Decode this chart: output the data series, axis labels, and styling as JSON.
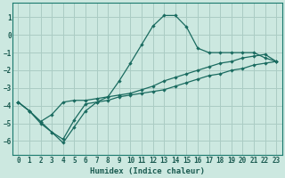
{
  "xlabel": "Humidex (Indice chaleur)",
  "ylabel": "",
  "bg_color": "#cce8e0",
  "grid_color": "#aaccC4",
  "line_color": "#1a6b60",
  "xlim": [
    -0.5,
    23.5
  ],
  "ylim": [
    -6.8,
    1.8
  ],
  "xticks": [
    0,
    1,
    2,
    3,
    4,
    5,
    6,
    7,
    8,
    9,
    10,
    11,
    12,
    13,
    14,
    15,
    16,
    17,
    18,
    19,
    20,
    21,
    22,
    23
  ],
  "yticks": [
    -6,
    -5,
    -4,
    -3,
    -2,
    -1,
    0,
    1
  ],
  "line1_x": [
    0,
    1,
    2,
    3,
    4,
    5,
    6,
    7,
    8,
    9,
    10,
    11,
    12,
    13,
    14,
    15,
    16,
    17,
    18,
    19,
    20,
    21,
    22,
    23
  ],
  "line1_y": [
    -3.8,
    -4.3,
    -4.9,
    -5.5,
    -5.9,
    -4.8,
    -3.9,
    -3.8,
    -3.7,
    -3.5,
    -3.4,
    -3.3,
    -3.2,
    -3.1,
    -2.9,
    -2.7,
    -2.5,
    -2.3,
    -2.2,
    -2.0,
    -1.9,
    -1.7,
    -1.6,
    -1.5
  ],
  "line2_x": [
    0,
    1,
    2,
    3,
    4,
    5,
    6,
    7,
    8,
    9,
    10,
    11,
    12,
    13,
    14,
    15,
    16,
    17,
    18,
    19,
    20,
    21,
    22,
    23
  ],
  "line2_y": [
    -3.8,
    -4.3,
    -5.0,
    -5.5,
    -6.1,
    -5.2,
    -4.3,
    -3.8,
    -3.5,
    -2.6,
    -1.6,
    -0.55,
    0.5,
    1.1,
    1.1,
    0.45,
    -0.75,
    -1.0,
    -1.0,
    -1.0,
    -1.0,
    -1.0,
    -1.3,
    -1.5
  ],
  "line3_x": [
    0,
    1,
    2,
    3,
    4,
    5,
    6,
    7,
    8,
    9,
    10,
    11,
    12,
    13,
    14,
    15,
    16,
    17,
    18,
    19,
    20,
    21,
    22,
    23
  ],
  "line3_y": [
    -3.8,
    -4.3,
    -4.9,
    -4.5,
    -3.8,
    -3.7,
    -3.7,
    -3.6,
    -3.5,
    -3.4,
    -3.3,
    -3.1,
    -2.9,
    -2.6,
    -2.4,
    -2.2,
    -2.0,
    -1.8,
    -1.6,
    -1.5,
    -1.3,
    -1.2,
    -1.1,
    -1.5
  ]
}
